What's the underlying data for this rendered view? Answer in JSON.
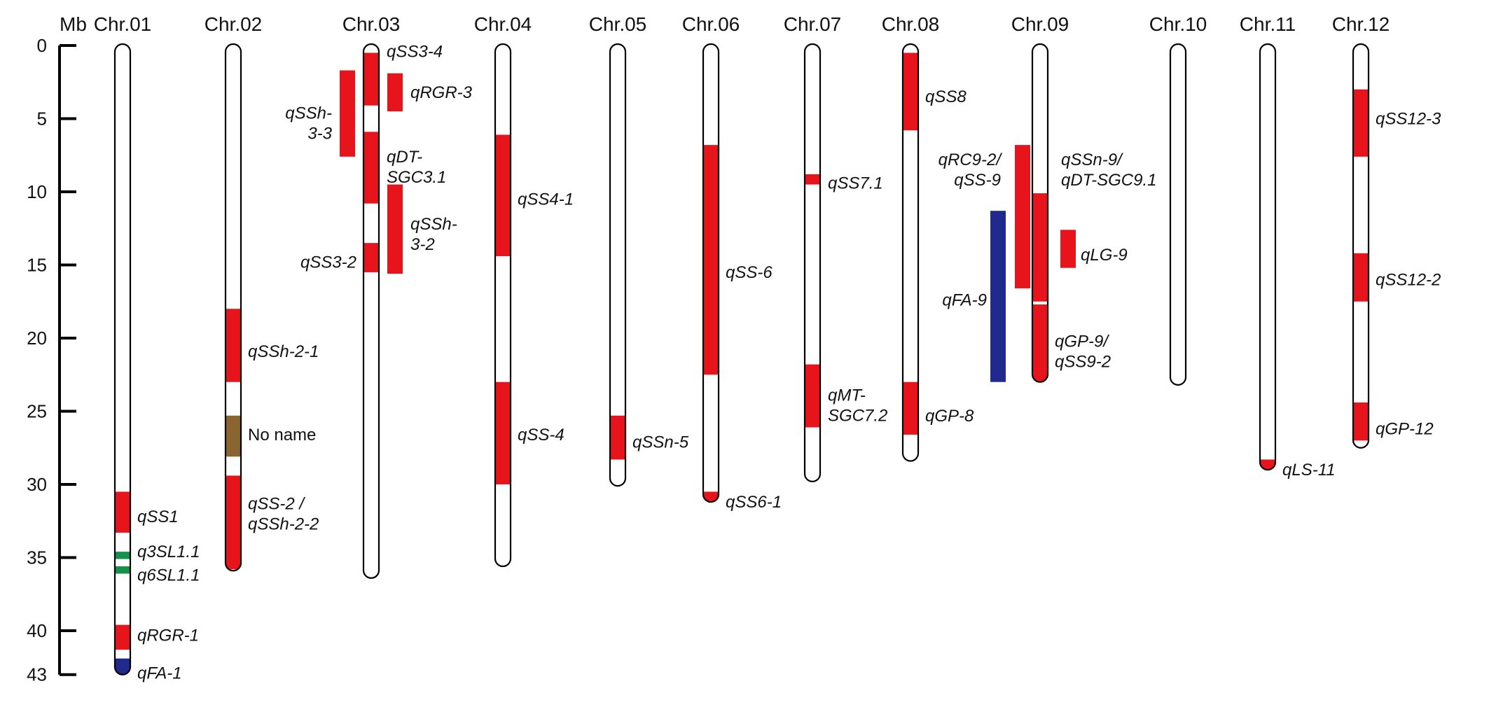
{
  "axis": {
    "unit_label": "Mb",
    "max": 43,
    "ticks": [
      0,
      5,
      10,
      15,
      20,
      25,
      30,
      35,
      40,
      43
    ]
  },
  "colors": {
    "red": "#e8141c",
    "blue": "#1f2a8c",
    "green": "#12924a",
    "brown": "#8b6530"
  },
  "chromosomes": [
    {
      "name": "Chr.01",
      "length": 43.0,
      "bands": [
        {
          "start": 30.5,
          "end": 33.3,
          "color": "red"
        },
        {
          "start": 34.6,
          "end": 35.1,
          "color": "green"
        },
        {
          "start": 35.6,
          "end": 36.1,
          "color": "green"
        },
        {
          "start": 39.6,
          "end": 41.3,
          "color": "red"
        },
        {
          "start": 41.9,
          "end": 43.0,
          "color": "blue"
        }
      ]
    },
    {
      "name": "Chr.02",
      "length": 35.9,
      "bands": [
        {
          "start": 18.0,
          "end": 23.0,
          "color": "red"
        },
        {
          "start": 25.3,
          "end": 28.1,
          "color": "brown"
        },
        {
          "start": 29.4,
          "end": 35.8,
          "color": "red"
        }
      ]
    },
    {
      "name": "Chr.03",
      "length": 36.4,
      "bands": [
        {
          "start": 0.5,
          "end": 4.1,
          "color": "red"
        },
        {
          "start": 5.9,
          "end": 10.8,
          "color": "red"
        },
        {
          "start": 13.5,
          "end": 15.5,
          "color": "red"
        }
      ],
      "side_bars": [
        {
          "offset": "left",
          "start": 1.7,
          "end": 7.6,
          "color": "red"
        },
        {
          "offset": "right",
          "start": 1.9,
          "end": 4.5,
          "color": "red"
        },
        {
          "offset": "right",
          "start": 9.5,
          "end": 15.6,
          "color": "red"
        }
      ]
    },
    {
      "name": "Chr.04",
      "length": 35.6,
      "bands": [
        {
          "start": 6.1,
          "end": 14.4,
          "color": "red"
        },
        {
          "start": 23.0,
          "end": 30.0,
          "color": "red"
        }
      ]
    },
    {
      "name": "Chr.05",
      "length": 30.1,
      "bands": [
        {
          "start": 25.3,
          "end": 28.3,
          "color": "red"
        }
      ]
    },
    {
      "name": "Chr.06",
      "length": 31.2,
      "bands": [
        {
          "start": 6.8,
          "end": 22.5,
          "color": "red"
        },
        {
          "start": 30.5,
          "end": 31.2,
          "color": "red"
        }
      ]
    },
    {
      "name": "Chr.07",
      "length": 29.8,
      "bands": [
        {
          "start": 8.8,
          "end": 9.5,
          "color": "red"
        },
        {
          "start": 21.8,
          "end": 26.1,
          "color": "red"
        }
      ]
    },
    {
      "name": "Chr.08",
      "length": 28.4,
      "bands": [
        {
          "start": 0.5,
          "end": 5.8,
          "color": "red"
        },
        {
          "start": 23.0,
          "end": 26.6,
          "color": "red"
        }
      ]
    },
    {
      "name": "Chr.09",
      "length": 23.0,
      "bands": [
        {
          "start": 10.1,
          "end": 17.5,
          "color": "red"
        },
        {
          "start": 17.7,
          "end": 23.0,
          "color": "red"
        }
      ],
      "side_bars": [
        {
          "offset": "left",
          "start": 6.8,
          "end": 16.6,
          "color": "red"
        },
        {
          "offset": "far-left",
          "start": 11.3,
          "end": 23.0,
          "color": "blue"
        },
        {
          "offset": "right",
          "start": 12.6,
          "end": 15.2,
          "color": "red"
        }
      ]
    },
    {
      "name": "Chr.10",
      "length": 23.2,
      "bands": []
    },
    {
      "name": "Chr.11",
      "length": 29.0,
      "bands": [
        {
          "start": 28.3,
          "end": 29.0,
          "color": "red"
        }
      ]
    },
    {
      "name": "Chr.12",
      "length": 27.5,
      "bands": [
        {
          "start": 3.0,
          "end": 7.6,
          "color": "red"
        },
        {
          "start": 14.2,
          "end": 17.5,
          "color": "red"
        },
        {
          "start": 24.4,
          "end": 27.0,
          "color": "red"
        }
      ]
    }
  ],
  "qtl_labels": [
    {
      "chr": "Chr.01",
      "lines": [
        "qSS1"
      ],
      "pos": 32.2,
      "side": "right"
    },
    {
      "chr": "Chr.01",
      "lines": [
        "q3SL1.1"
      ],
      "pos": 34.6,
      "side": "right"
    },
    {
      "chr": "Chr.01",
      "lines": [
        "q6SL1.1"
      ],
      "pos": 36.2,
      "side": "right"
    },
    {
      "chr": "Chr.01",
      "lines": [
        "qRGR-1"
      ],
      "pos": 40.3,
      "side": "right"
    },
    {
      "chr": "Chr.01",
      "lines": [
        "qFA-1"
      ],
      "pos": 42.9,
      "side": "right"
    },
    {
      "chr": "Chr.02",
      "lines": [
        "qSSh-2-1"
      ],
      "pos": 20.9,
      "side": "right"
    },
    {
      "chr": "Chr.02",
      "lines": [
        "No name"
      ],
      "pos": 26.6,
      "side": "right",
      "plain": true
    },
    {
      "chr": "Chr.02",
      "lines": [
        "qSS-2 /",
        "qSSh-2-2"
      ],
      "pos": 32.0,
      "side": "right"
    },
    {
      "chr": "Chr.03",
      "lines": [
        "qSS3-4"
      ],
      "pos": 0.4,
      "side": "right-near"
    },
    {
      "chr": "Chr.03",
      "lines": [
        "qRGR-3"
      ],
      "pos": 3.2,
      "side": "right-far"
    },
    {
      "chr": "Chr.03",
      "lines": [
        "qSSh-",
        "3-3"
      ],
      "pos": 5.3,
      "side": "left-far"
    },
    {
      "chr": "Chr.03",
      "lines": [
        "qDT-",
        "SGC3.1"
      ],
      "pos": 8.3,
      "side": "right-near"
    },
    {
      "chr": "Chr.03",
      "lines": [
        "qSSh-",
        "3-2"
      ],
      "pos": 12.9,
      "side": "right-far"
    },
    {
      "chr": "Chr.03",
      "lines": [
        "qSS3-2"
      ],
      "pos": 14.8,
      "side": "left"
    },
    {
      "chr": "Chr.04",
      "lines": [
        "qSS4-1"
      ],
      "pos": 10.5,
      "side": "right"
    },
    {
      "chr": "Chr.04",
      "lines": [
        "qSS-4"
      ],
      "pos": 26.6,
      "side": "right"
    },
    {
      "chr": "Chr.05",
      "lines": [
        "qSSn-5"
      ],
      "pos": 27.1,
      "side": "right"
    },
    {
      "chr": "Chr.06",
      "lines": [
        "qSS-6"
      ],
      "pos": 15.5,
      "side": "right"
    },
    {
      "chr": "Chr.06",
      "lines": [
        "qSS6-1"
      ],
      "pos": 31.2,
      "side": "right"
    },
    {
      "chr": "Chr.07",
      "lines": [
        "qSS7.1"
      ],
      "pos": 9.4,
      "side": "right-near"
    },
    {
      "chr": "Chr.07",
      "lines": [
        "qMT-",
        "SGC7.2"
      ],
      "pos": 24.6,
      "side": "right-near"
    },
    {
      "chr": "Chr.08",
      "lines": [
        "qSS8"
      ],
      "pos": 3.5,
      "side": "right"
    },
    {
      "chr": "Chr.08",
      "lines": [
        "qGP-8"
      ],
      "pos": 25.3,
      "side": "right"
    },
    {
      "chr": "Chr.09",
      "lines": [
        "qRC9-2/",
        "qSS-9"
      ],
      "pos": 8.5,
      "side": "left-far"
    },
    {
      "chr": "Chr.09",
      "lines": [
        "qSSn-9/",
        "qDT-SGC9.1"
      ],
      "pos": 8.5,
      "side": "right-far"
    },
    {
      "chr": "Chr.09",
      "lines": [
        "qLG-9"
      ],
      "pos": 14.3,
      "side": "right-far2"
    },
    {
      "chr": "Chr.09",
      "lines": [
        "qFA-9"
      ],
      "pos": 17.4,
      "side": "left-far2"
    },
    {
      "chr": "Chr.09",
      "lines": [
        "qGP-9/",
        "qSS9-2"
      ],
      "pos": 20.9,
      "side": "right"
    },
    {
      "chr": "Chr.11",
      "lines": [
        "qLS-11"
      ],
      "pos": 29.0,
      "side": "right"
    },
    {
      "chr": "Chr.12",
      "lines": [
        "qSS12-3"
      ],
      "pos": 5.0,
      "side": "right"
    },
    {
      "chr": "Chr.12",
      "lines": [
        "qSS12-2"
      ],
      "pos": 16.0,
      "side": "right"
    },
    {
      "chr": "Chr.12",
      "lines": [
        "qGP-12"
      ],
      "pos": 26.2,
      "side": "right"
    }
  ]
}
